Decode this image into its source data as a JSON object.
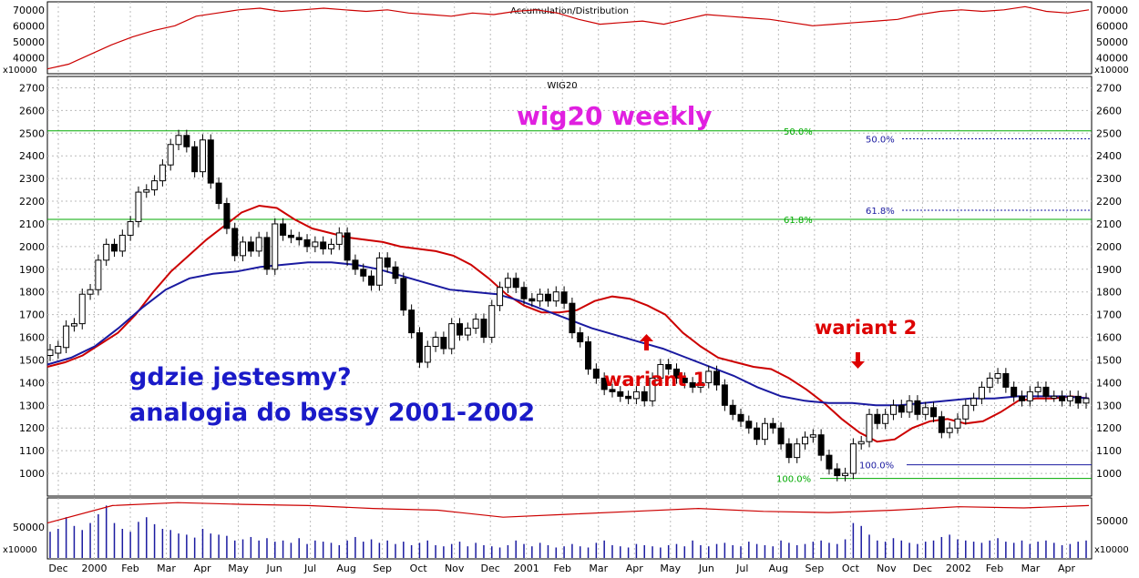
{
  "chart_data": {
    "type": "candlestick",
    "panels": {
      "top": {
        "indicator": "Accumulation/Distribution",
        "multiplier": "x10000",
        "yticks": [
          40000,
          50000,
          60000,
          70000
        ]
      },
      "main": {
        "title": "WIG20",
        "ylim": [
          900,
          2750
        ],
        "yticks": [
          1000,
          1100,
          1200,
          1300,
          1400,
          1500,
          1600,
          1700,
          1800,
          1900,
          2000,
          2100,
          2200,
          2300,
          2400,
          2500,
          2600,
          2700
        ]
      },
      "volume": {
        "multiplier": "x10000",
        "yticks": [
          50000
        ]
      }
    },
    "x_axis": {
      "labels": [
        "Dec",
        "2000",
        "Feb",
        "Mar",
        "Apr",
        "May",
        "Jun",
        "Jul",
        "Aug",
        "Sep",
        "Oct",
        "Nov",
        "Dec",
        "2001",
        "Feb",
        "Mar",
        "Apr",
        "May",
        "Jun",
        "Jul",
        "Aug",
        "Sep",
        "Oct",
        "Nov",
        "Dec",
        "2002",
        "Feb",
        "Mar",
        "Apr"
      ]
    },
    "candles": [
      [
        1520,
        1545
      ],
      [
        1530,
        1560
      ],
      [
        1555,
        1650
      ],
      [
        1650,
        1660
      ],
      [
        1660,
        1790
      ],
      [
        1790,
        1810
      ],
      [
        1810,
        1940
      ],
      [
        1940,
        2010
      ],
      [
        2010,
        1980
      ],
      [
        1980,
        2050
      ],
      [
        2050,
        2110
      ],
      [
        2110,
        2240
      ],
      [
        2240,
        2250
      ],
      [
        2250,
        2290
      ],
      [
        2290,
        2360
      ],
      [
        2360,
        2450
      ],
      [
        2450,
        2490
      ],
      [
        2490,
        2440
      ],
      [
        2440,
        2330
      ],
      [
        2330,
        2470
      ],
      [
        2470,
        2280
      ],
      [
        2280,
        2190
      ],
      [
        2190,
        2080
      ],
      [
        2080,
        1960
      ],
      [
        1960,
        2020
      ],
      [
        2020,
        1980
      ],
      [
        1980,
        2040
      ],
      [
        2040,
        1900
      ],
      [
        1900,
        2100
      ],
      [
        2100,
        2050
      ],
      [
        2050,
        2040
      ],
      [
        2040,
        2030
      ],
      [
        2030,
        2000
      ],
      [
        2000,
        2020
      ],
      [
        2020,
        1990
      ],
      [
        1990,
        2010
      ],
      [
        2010,
        2060
      ],
      [
        2060,
        1940
      ],
      [
        1940,
        1900
      ],
      [
        1900,
        1870
      ],
      [
        1870,
        1830
      ],
      [
        1830,
        1950
      ],
      [
        1950,
        1910
      ],
      [
        1910,
        1860
      ],
      [
        1860,
        1720
      ],
      [
        1720,
        1620
      ],
      [
        1620,
        1490
      ],
      [
        1490,
        1560
      ],
      [
        1560,
        1600
      ],
      [
        1600,
        1550
      ],
      [
        1550,
        1660
      ],
      [
        1660,
        1610
      ],
      [
        1610,
        1640
      ],
      [
        1640,
        1680
      ],
      [
        1680,
        1600
      ],
      [
        1600,
        1740
      ],
      [
        1740,
        1820
      ],
      [
        1820,
        1860
      ],
      [
        1860,
        1820
      ],
      [
        1820,
        1770
      ],
      [
        1770,
        1760
      ],
      [
        1760,
        1790
      ],
      [
        1790,
        1760
      ],
      [
        1760,
        1800
      ],
      [
        1800,
        1750
      ],
      [
        1750,
        1620
      ],
      [
        1620,
        1580
      ],
      [
        1580,
        1460
      ],
      [
        1460,
        1420
      ],
      [
        1420,
        1370
      ],
      [
        1370,
        1360
      ],
      [
        1360,
        1340
      ],
      [
        1340,
        1330
      ],
      [
        1330,
        1360
      ],
      [
        1360,
        1320
      ],
      [
        1320,
        1420
      ],
      [
        1420,
        1480
      ],
      [
        1480,
        1460
      ],
      [
        1460,
        1420
      ],
      [
        1420,
        1400
      ],
      [
        1400,
        1380
      ],
      [
        1380,
        1400
      ],
      [
        1400,
        1450
      ],
      [
        1450,
        1390
      ],
      [
        1390,
        1300
      ],
      [
        1300,
        1260
      ],
      [
        1260,
        1230
      ],
      [
        1230,
        1200
      ],
      [
        1200,
        1150
      ],
      [
        1150,
        1220
      ],
      [
        1220,
        1200
      ],
      [
        1200,
        1130
      ],
      [
        1130,
        1070
      ],
      [
        1070,
        1130
      ],
      [
        1130,
        1160
      ],
      [
        1160,
        1170
      ],
      [
        1170,
        1080
      ],
      [
        1080,
        1020
      ],
      [
        1020,
        990
      ],
      [
        990,
        1000
      ],
      [
        1000,
        1130
      ],
      [
        1130,
        1140
      ],
      [
        1140,
        1260
      ],
      [
        1260,
        1220
      ],
      [
        1220,
        1260
      ],
      [
        1260,
        1300
      ],
      [
        1300,
        1270
      ],
      [
        1270,
        1320
      ],
      [
        1320,
        1260
      ],
      [
        1260,
        1290
      ],
      [
        1290,
        1250
      ],
      [
        1250,
        1180
      ],
      [
        1180,
        1200
      ],
      [
        1200,
        1240
      ],
      [
        1240,
        1300
      ],
      [
        1300,
        1330
      ],
      [
        1330,
        1380
      ],
      [
        1380,
        1420
      ],
      [
        1420,
        1440
      ],
      [
        1440,
        1380
      ],
      [
        1380,
        1340
      ],
      [
        1340,
        1320
      ],
      [
        1320,
        1360
      ],
      [
        1360,
        1380
      ],
      [
        1380,
        1340
      ],
      [
        1340,
        1340
      ],
      [
        1340,
        1320
      ],
      [
        1320,
        1340
      ],
      [
        1340,
        1310
      ],
      [
        1310,
        1330
      ]
    ],
    "series": [
      {
        "name": "",
        "color": "#cc0000",
        "values": [
          1470,
          1490,
          1520,
          1570,
          1620,
          1700,
          1800,
          1890,
          1960,
          2030,
          2090,
          2150,
          2180,
          2170,
          2120,
          2080,
          2060,
          2040,
          2030,
          2020,
          2000,
          1990,
          1980,
          1960,
          1920,
          1860,
          1790,
          1740,
          1710,
          1710,
          1720,
          1760,
          1780,
          1770,
          1740,
          1700,
          1620,
          1560,
          1510,
          1490,
          1470,
          1460,
          1420,
          1370,
          1310,
          1240,
          1180,
          1140,
          1150,
          1200,
          1230,
          1240,
          1220,
          1230,
          1270,
          1320,
          1330,
          1330,
          1340,
          1330
        ]
      },
      {
        "name": "",
        "color": "#1a1aa0",
        "values": [
          1480,
          1510,
          1560,
          1640,
          1730,
          1810,
          1860,
          1880,
          1890,
          1910,
          1920,
          1930,
          1930,
          1920,
          1900,
          1870,
          1840,
          1810,
          1800,
          1790,
          1760,
          1720,
          1680,
          1640,
          1610,
          1580,
          1550,
          1510,
          1470,
          1430,
          1380,
          1340,
          1320,
          1310,
          1310,
          1300,
          1300,
          1310,
          1320,
          1330,
          1330,
          1340,
          1340,
          1340,
          1330
        ]
      },
      {
        "name": "",
        "color": "#cc0000",
        "kind": "volume-average",
        "values": [
          0.6,
          0.9,
          0.95,
          0.92,
          0.9,
          0.85,
          0.82,
          0.7,
          0.75,
          0.8,
          0.85,
          0.8,
          0.78,
          0.82,
          0.88,
          0.86,
          0.9
        ]
      }
    ],
    "volume_bars": [
      0.45,
      0.5,
      0.7,
      0.55,
      0.48,
      0.6,
      0.75,
      0.9,
      0.6,
      0.5,
      0.45,
      0.62,
      0.7,
      0.58,
      0.5,
      0.48,
      0.42,
      0.4,
      0.35,
      0.5,
      0.42,
      0.4,
      0.38,
      0.3,
      0.32,
      0.36,
      0.3,
      0.34,
      0.28,
      0.3,
      0.26,
      0.34,
      0.24,
      0.3,
      0.28,
      0.26,
      0.22,
      0.3,
      0.36,
      0.28,
      0.32,
      0.26,
      0.3,
      0.24,
      0.28,
      0.22,
      0.26,
      0.3,
      0.22,
      0.2,
      0.24,
      0.28,
      0.2,
      0.26,
      0.22,
      0.2,
      0.18,
      0.22,
      0.3,
      0.24,
      0.2,
      0.26,
      0.22,
      0.18,
      0.2,
      0.24,
      0.2,
      0.18,
      0.26,
      0.3,
      0.22,
      0.2,
      0.18,
      0.24,
      0.22,
      0.2,
      0.18,
      0.22,
      0.24,
      0.2,
      0.3,
      0.22,
      0.2,
      0.24,
      0.26,
      0.22,
      0.2,
      0.28,
      0.24,
      0.22,
      0.2,
      0.3,
      0.26,
      0.22,
      0.24,
      0.28,
      0.3,
      0.26,
      0.24,
      0.32,
      0.6,
      0.55,
      0.4,
      0.3,
      0.28,
      0.34,
      0.3,
      0.26,
      0.24,
      0.28,
      0.3,
      0.36,
      0.4,
      0.32,
      0.3,
      0.28,
      0.26,
      0.3,
      0.34,
      0.28,
      0.26,
      0.3,
      0.24,
      0.28,
      0.3,
      0.26,
      0.22,
      0.24,
      0.28,
      0.3
    ],
    "levels": [
      {
        "label": "50.0%",
        "value": 2510,
        "color": "#00aa00"
      },
      {
        "label": "61.8%",
        "value": 2120,
        "color": "#00aa00"
      },
      {
        "label": "100.0%",
        "value": 978,
        "color": "#00aa00"
      },
      {
        "label": "50.0%",
        "value": 2475,
        "color": "#1a1aa0"
      },
      {
        "label": "61.8%",
        "value": 2160,
        "color": "#1a1aa0"
      },
      {
        "label": "100.0%",
        "value": 1038,
        "color": "#1a1aa0"
      }
    ],
    "annotations": {
      "headline": "wig20 weekly",
      "question": "gdzie jestesmy?",
      "analogy": "analogia do bessy 2001-2002",
      "variant1": "wariant 1",
      "variant2": "wariant 2"
    },
    "colors": {
      "ma_short": "#cc0000",
      "ma_long": "#1a1aa0",
      "headline": "#e020e0",
      "note": "#1a1ac8",
      "variant": "#dd0000",
      "grid": "#bbbbbb"
    }
  }
}
